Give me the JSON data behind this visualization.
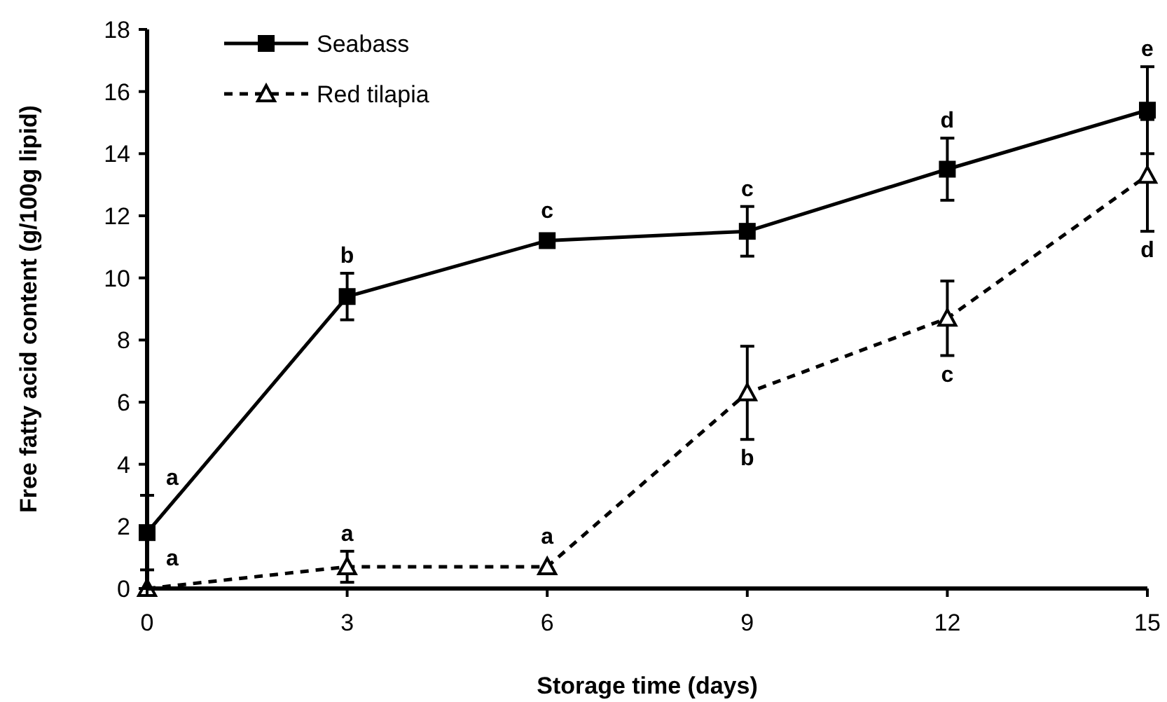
{
  "chart_data": {
    "type": "line",
    "xlabel": "Storage time (days)",
    "ylabel": "Free fatty acid content (g/100g lipid)",
    "x": [
      0,
      3,
      6,
      9,
      12,
      15
    ],
    "xlim": [
      0,
      15
    ],
    "xticks": [
      0,
      3,
      6,
      9,
      12,
      15
    ],
    "ylim": [
      0,
      18
    ],
    "yticks": [
      0,
      2,
      4,
      6,
      8,
      10,
      12,
      14,
      16,
      18
    ],
    "grid": false,
    "legend": "top left",
    "series": [
      {
        "name": "Seabass",
        "color": "#000000",
        "marker": "square",
        "line_style": "solid",
        "values": [
          1.8,
          9.4,
          11.2,
          11.5,
          13.5,
          15.4
        ],
        "errors": [
          1.2,
          0.75,
          null,
          0.8,
          1.0,
          1.4
        ]
      },
      {
        "name": "Red tilapia",
        "color": "#000000",
        "marker": "triangle",
        "line_style": "dashed",
        "values": [
          0,
          0.7,
          0.7,
          6.3,
          8.7,
          13.3
        ],
        "errors": [
          null,
          0.5,
          null,
          1.5,
          1.2,
          1.8
        ]
      }
    ],
    "annotations": [
      {
        "text": "a",
        "x": 0,
        "y": 1.8
      },
      {
        "text": "b",
        "x": 3,
        "y": 9.4
      },
      {
        "text": "c",
        "x": 6,
        "y": 11.2
      },
      {
        "text": "c",
        "x": 9,
        "y": 11.5
      },
      {
        "text": "d",
        "x": 12,
        "y": 13.5
      },
      {
        "text": "e",
        "x": 15,
        "y": 15.4
      },
      {
        "text": "a",
        "x": 0,
        "y": 0
      },
      {
        "text": "a",
        "x": 3,
        "y": 0.7
      },
      {
        "text": "a",
        "x": 6,
        "y": 0.7
      },
      {
        "text": "b",
        "x": 9,
        "y": 6.3
      },
      {
        "text": "c",
        "x": 12,
        "y": 8.7
      },
      {
        "text": "d",
        "x": 15,
        "y": 13.3
      }
    ]
  }
}
